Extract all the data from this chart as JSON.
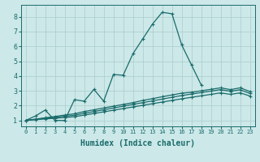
{
  "title": "",
  "xlabel": "Humidex (Indice chaleur)",
  "background_color": "#cce8e8",
  "grid_color": "#aacccc",
  "line_color": "#1a6b6b",
  "xlim": [
    -0.5,
    23.5
  ],
  "ylim": [
    0.6,
    8.8
  ],
  "xticks": [
    0,
    1,
    2,
    3,
    4,
    5,
    6,
    7,
    8,
    9,
    10,
    11,
    12,
    13,
    14,
    15,
    16,
    17,
    18,
    19,
    20,
    21,
    22,
    23
  ],
  "yticks": [
    1,
    2,
    3,
    4,
    5,
    6,
    7,
    8
  ],
  "line1_x": [
    0,
    1,
    2,
    3,
    4,
    5,
    6,
    7,
    8,
    9,
    10,
    11,
    12,
    13,
    14,
    15,
    16,
    17,
    18,
    19,
    20,
    21,
    22
  ],
  "line1_y": [
    1.0,
    1.3,
    1.7,
    1.0,
    1.0,
    2.4,
    2.3,
    3.1,
    2.3,
    4.1,
    4.05,
    5.5,
    6.5,
    7.5,
    8.3,
    8.2,
    6.1,
    4.75,
    3.4,
    null,
    null,
    null,
    null
  ],
  "line2_x": [
    0,
    1,
    2,
    3,
    4,
    5,
    6,
    7,
    8,
    9,
    10,
    11,
    12,
    13,
    14,
    15,
    16,
    17,
    18,
    19,
    20,
    21,
    22,
    23
  ],
  "line2_y": [
    1.0,
    1.09,
    1.18,
    1.27,
    1.36,
    1.45,
    1.6,
    1.72,
    1.84,
    1.96,
    2.08,
    2.2,
    2.35,
    2.47,
    2.6,
    2.72,
    2.84,
    2.9,
    3.0,
    3.1,
    3.2,
    3.08,
    3.2,
    2.95
  ],
  "line3_x": [
    0,
    1,
    2,
    3,
    4,
    5,
    6,
    7,
    8,
    9,
    10,
    11,
    12,
    13,
    14,
    15,
    16,
    17,
    18,
    19,
    20,
    21,
    22,
    23
  ],
  "line3_y": [
    1.0,
    1.07,
    1.14,
    1.21,
    1.28,
    1.35,
    1.48,
    1.6,
    1.72,
    1.84,
    1.96,
    2.08,
    2.2,
    2.32,
    2.44,
    2.56,
    2.68,
    2.78,
    2.88,
    2.98,
    3.08,
    2.97,
    3.07,
    2.82
  ],
  "line4_x": [
    0,
    1,
    2,
    3,
    4,
    5,
    6,
    7,
    8,
    9,
    10,
    11,
    12,
    13,
    14,
    15,
    16,
    17,
    18,
    19,
    20,
    21,
    22,
    23
  ],
  "line4_y": [
    1.0,
    1.05,
    1.1,
    1.15,
    1.2,
    1.25,
    1.36,
    1.47,
    1.58,
    1.69,
    1.8,
    1.91,
    2.02,
    2.13,
    2.24,
    2.35,
    2.46,
    2.56,
    2.66,
    2.76,
    2.86,
    2.76,
    2.86,
    2.65
  ],
  "marker": "+",
  "markersize": 3,
  "linewidth": 0.9,
  "xlabel_fontsize": 7
}
